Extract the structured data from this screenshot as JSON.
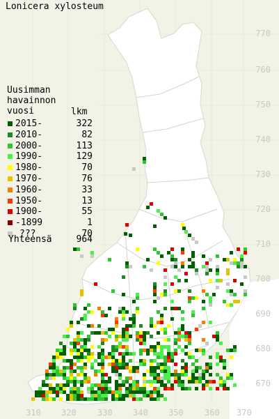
{
  "title": "Lonicera xylosteum",
  "legend": {
    "heading_lines": [
      "Uusimman",
      "havainnon",
      "vuosi"
    ],
    "count_heading": "lkm",
    "rows": [
      {
        "label": "2015-",
        "count": "322",
        "color": "#005f00"
      },
      {
        "label": "2010-",
        "count": "82",
        "color": "#208a20"
      },
      {
        "label": "2000-",
        "count": "113",
        "color": "#2fc72f"
      },
      {
        "label": "1990-",
        "count": "129",
        "color": "#4cf04c"
      },
      {
        "label": "1980-",
        "count": "70",
        "color": "#ffff00"
      },
      {
        "label": "1970-",
        "count": "76",
        "color": "#e6c300"
      },
      {
        "label": "1960-",
        "count": "33",
        "color": "#ff7a00"
      },
      {
        "label": "1950-",
        "count": "13",
        "color": "#ff3a00"
      },
      {
        "label": "1900-",
        "count": "55",
        "color": "#e00000"
      },
      {
        "label": "-1899",
        "count": "1",
        "color": "#8b0000"
      },
      {
        "label": "???",
        "count": "70",
        "color": "#c8c8c8"
      }
    ],
    "total_label": "Yhteensä",
    "total_value": "964"
  },
  "axes": {
    "y_ticks": [
      "770",
      "760",
      "750",
      "740",
      "730",
      "720",
      "710",
      "700",
      "690",
      "680",
      "670"
    ],
    "x_ticks": [
      "310",
      "320",
      "330",
      "340",
      "350",
      "360",
      "370"
    ]
  },
  "colors": {
    "background": "#f2f3e6",
    "land": "#ffffff",
    "borders": "#cfd6c8",
    "grid": "#e2e2d8",
    "tick_labels": "#c9c9c0"
  }
}
